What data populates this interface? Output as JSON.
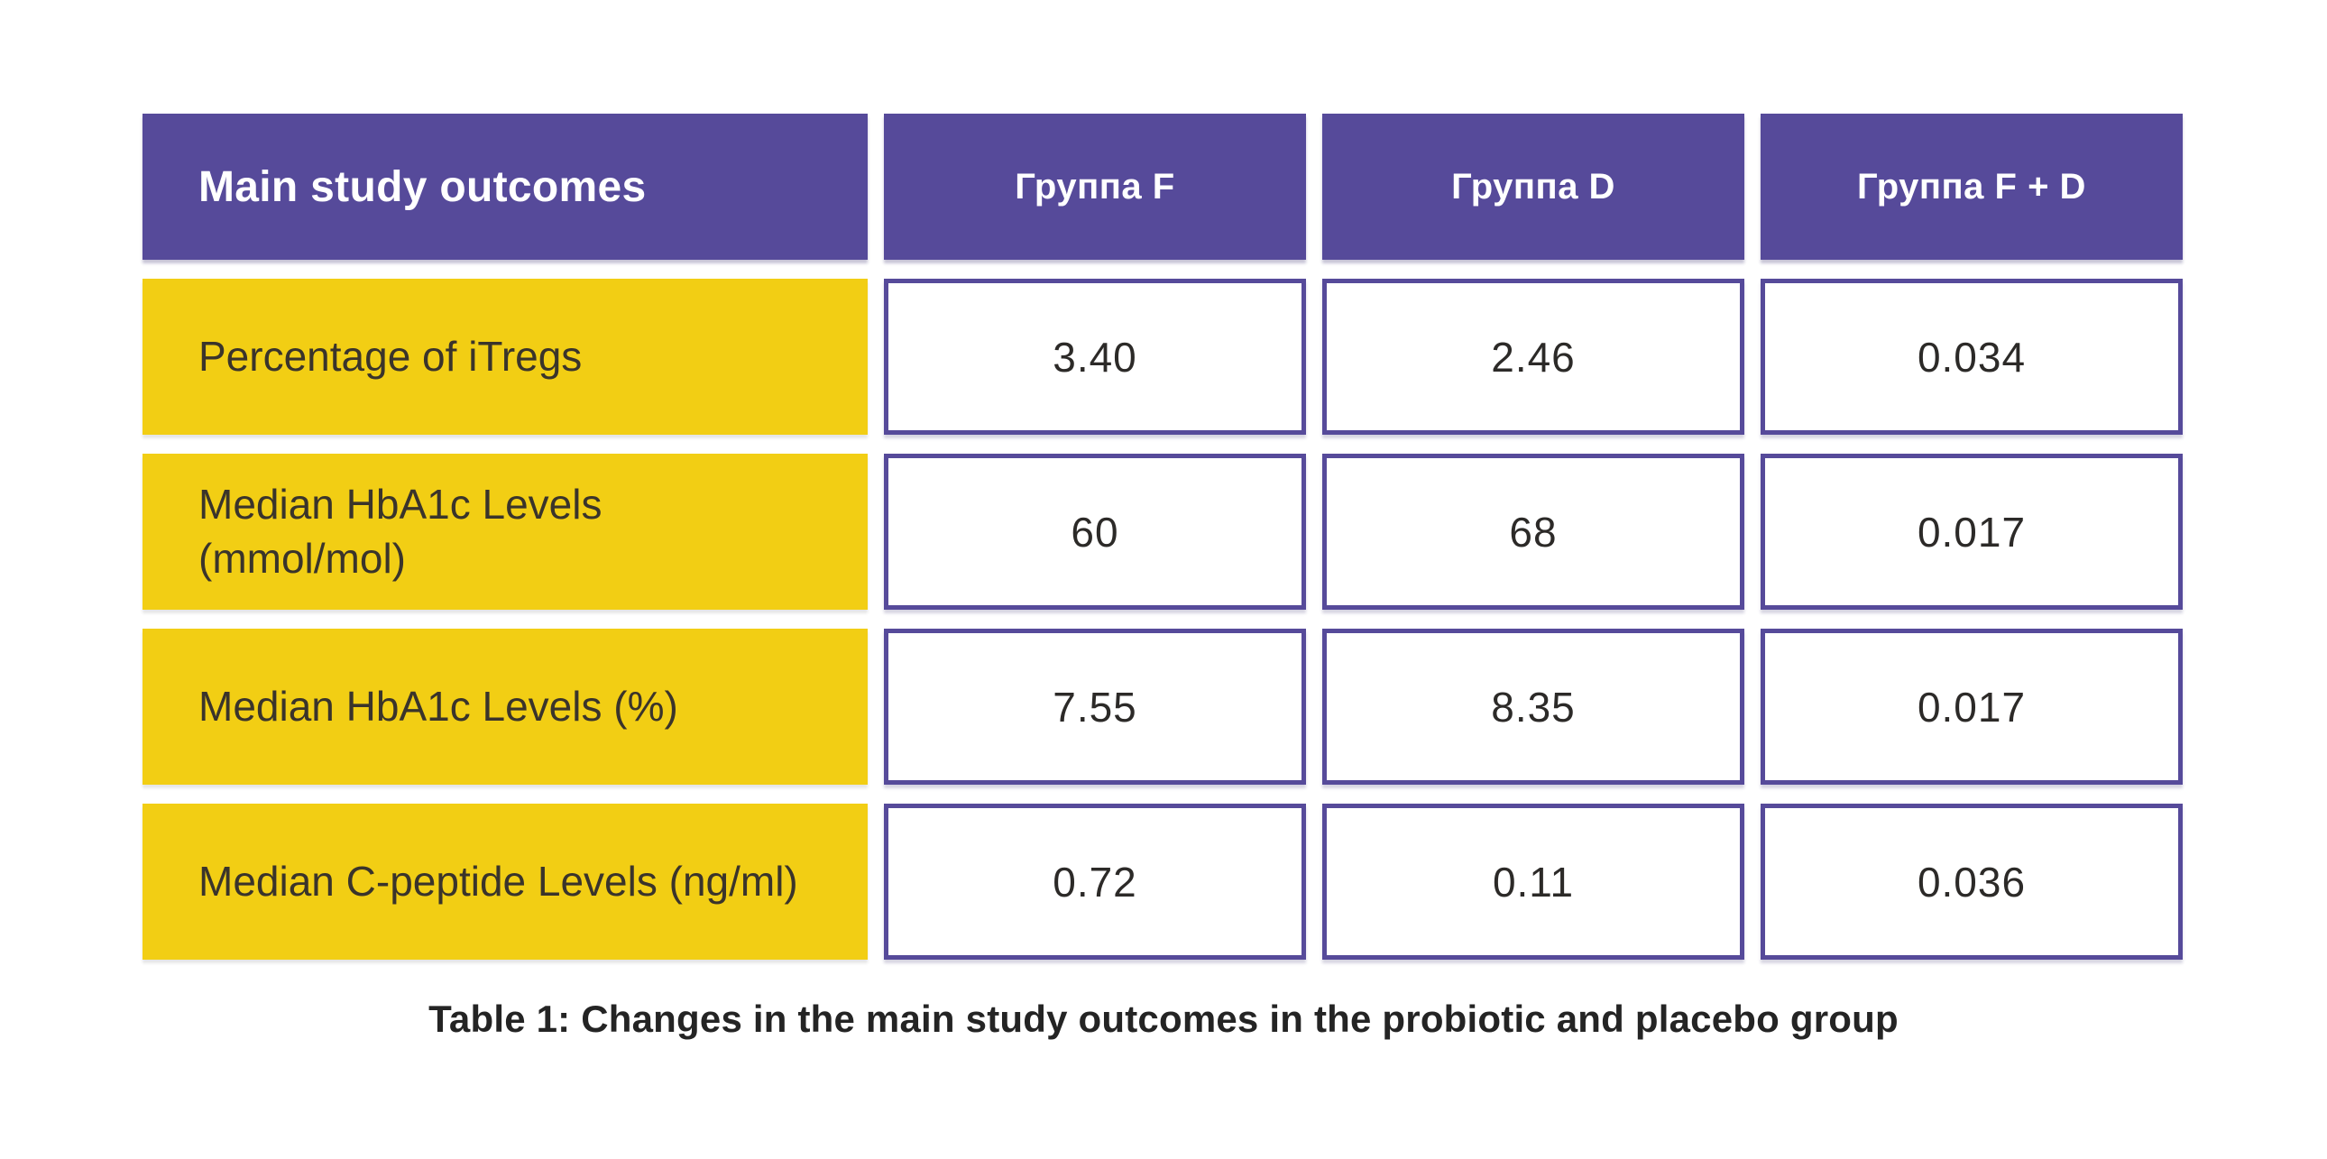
{
  "table": {
    "header": {
      "label": "Main study outcomes",
      "columns": [
        "Группа F",
        "Группа D",
        "Группа F + D"
      ]
    },
    "rows": [
      {
        "label": "Percentage of iTregs",
        "values": [
          "3.40",
          "2.46",
          "0.034"
        ]
      },
      {
        "label": "Median HbA1c Levels (mmol/mol)",
        "values": [
          "60",
          "68",
          "0.017"
        ]
      },
      {
        "label": "Median HbA1c Levels (%)",
        "values": [
          "7.55",
          "8.35",
          "0.017"
        ]
      },
      {
        "label": "Median C-peptide Levels (ng/ml)",
        "values": [
          "0.72",
          "0.11",
          "0.036"
        ]
      }
    ],
    "caption": "Table 1: Changes in the main study outcomes in the probiotic and placebo group"
  },
  "colors": {
    "header_bg": "#564a9a",
    "header_text": "#ffffff",
    "label_bg": "#f2ce14",
    "label_text": "#3a342b",
    "value_border": "#564a9a",
    "value_text": "#2c2a28",
    "caption_text": "#242424",
    "page_bg": "#ffffff"
  }
}
